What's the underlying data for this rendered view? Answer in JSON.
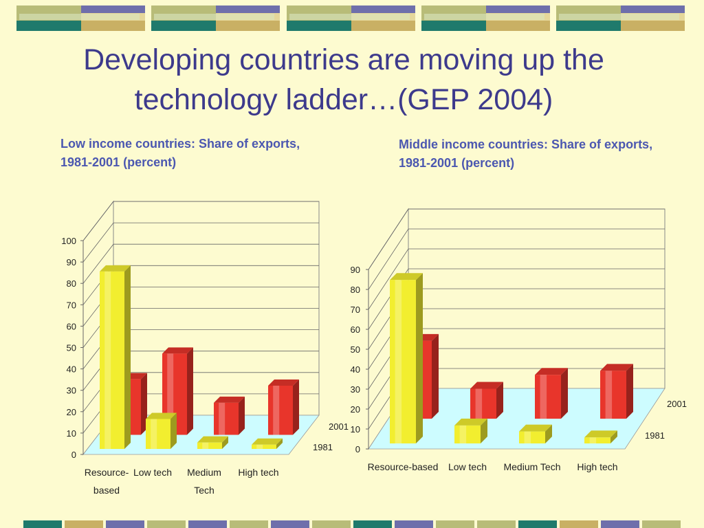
{
  "slide": {
    "title": "Developing countries are moving up the technology ladder…(GEP 2004)"
  },
  "theme": {
    "banner_colors": [
      "#b8bc78",
      "#6e6fab",
      "#c9b064",
      "#1f7a6c"
    ],
    "bar_2001": "#e8352b",
    "bar_1981": "#f2ee2f",
    "floor": "#cdfcff"
  },
  "chart_data": [
    {
      "type": "bar",
      "title": "Low income countries: Share of exports, 1981-2001 (percent)",
      "categories": [
        "Resource-based",
        "Low tech",
        "Medium Tech",
        "High tech"
      ],
      "series": [
        {
          "name": "2001",
          "values": [
            26,
            38,
            15,
            23
          ]
        },
        {
          "name": "1981",
          "values": [
            83,
            14,
            3,
            2
          ]
        }
      ],
      "ylim": [
        0,
        100
      ],
      "yticks": [
        "0",
        "10",
        "20",
        "30",
        "40",
        "50",
        "60",
        "70",
        "80",
        "90",
        "100"
      ],
      "depth_labels": [
        "2001",
        "1981"
      ]
    },
    {
      "type": "bar",
      "title": "Middle income countries: Share of exports, 1981-2001 (percent)",
      "categories": [
        "Resource-based",
        "Low tech",
        "Medium Tech",
        "High tech"
      ],
      "series": [
        {
          "name": "2001",
          "values": [
            39,
            15,
            22,
            24
          ]
        },
        {
          "name": "1981",
          "values": [
            82,
            9,
            6,
            3
          ]
        }
      ],
      "ylim": [
        0,
        90
      ],
      "yticks": [
        "0",
        "10",
        "20",
        "30",
        "40",
        "50",
        "60",
        "70",
        "80",
        "90"
      ],
      "depth_labels": [
        "2001",
        "1981"
      ]
    }
  ]
}
